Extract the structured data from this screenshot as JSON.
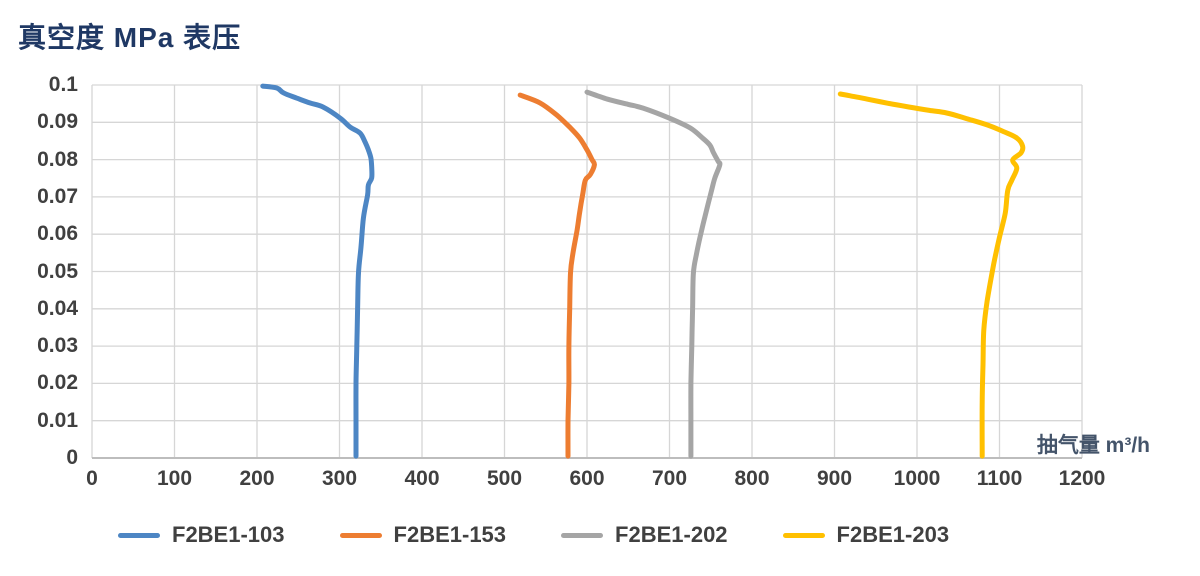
{
  "title": "真空度 MPa 表压",
  "axis_unit_label": "抽气量 m³/h",
  "colors": {
    "title": "#1F3864",
    "tick_text": "#404040",
    "legend_text": "#404040",
    "unit_label_text": "#44546A",
    "gridline": "#D6D6D6",
    "axis_line": "#BDBDBD"
  },
  "chart_data": {
    "type": "line",
    "title": "真空度 MPa 表压",
    "xlabel": "抽气量 m³/h",
    "ylabel": "真空度 MPa 表压",
    "xlim": [
      0,
      1200
    ],
    "ylim": [
      0,
      0.1
    ],
    "grid": true,
    "legend_position": "bottom",
    "x_ticks": [
      {
        "value": 0,
        "label": "0"
      },
      {
        "value": 100,
        "label": "100"
      },
      {
        "value": 200,
        "label": "200"
      },
      {
        "value": 300,
        "label": "300"
      },
      {
        "value": 400,
        "label": "400"
      },
      {
        "value": 500,
        "label": "500"
      },
      {
        "value": 600,
        "label": "600"
      },
      {
        "value": 700,
        "label": "700"
      },
      {
        "value": 800,
        "label": "800"
      },
      {
        "value": 900,
        "label": "900"
      },
      {
        "value": 1000,
        "label": "1000"
      },
      {
        "value": 1100,
        "label": "1100"
      },
      {
        "value": 1200,
        "label": "1200"
      }
    ],
    "y_ticks": [
      {
        "value": 0,
        "label": "0"
      },
      {
        "value": 0.01,
        "label": "0.01"
      },
      {
        "value": 0.02,
        "label": "0.02"
      },
      {
        "value": 0.03,
        "label": "0.03"
      },
      {
        "value": 0.04,
        "label": "0.04"
      },
      {
        "value": 0.05,
        "label": "0.05"
      },
      {
        "value": 0.06,
        "label": "0.06"
      },
      {
        "value": 0.07,
        "label": "0.07"
      },
      {
        "value": 0.08,
        "label": "0.08"
      },
      {
        "value": 0.09,
        "label": "0.09"
      },
      {
        "value": 0.1,
        "label": "0.1"
      }
    ],
    "series": [
      {
        "name": "F2BE1-103",
        "color": "#4D86C4",
        "points": [
          [
            207,
            0.0997
          ],
          [
            224,
            0.0992
          ],
          [
            232,
            0.0979
          ],
          [
            248,
            0.0965
          ],
          [
            264,
            0.0952
          ],
          [
            280,
            0.0941
          ],
          [
            301,
            0.0911
          ],
          [
            313,
            0.0887
          ],
          [
            325,
            0.0871
          ],
          [
            331,
            0.0847
          ],
          [
            335,
            0.0826
          ],
          [
            338,
            0.0804
          ],
          [
            339,
            0.078
          ],
          [
            339,
            0.0751
          ],
          [
            335,
            0.0732
          ],
          [
            334,
            0.0705
          ],
          [
            329,
            0.0643
          ],
          [
            326,
            0.0563
          ],
          [
            323,
            0.0496
          ],
          [
            322,
            0.04
          ],
          [
            321,
            0.03
          ],
          [
            320,
            0.02
          ],
          [
            320,
            0.01
          ],
          [
            320,
            0.0005
          ]
        ]
      },
      {
        "name": "F2BE1-153",
        "color": "#ED7D31",
        "points": [
          [
            519,
            0.0973
          ],
          [
            543,
            0.0952
          ],
          [
            563,
            0.092
          ],
          [
            579,
            0.0887
          ],
          [
            591,
            0.0858
          ],
          [
            600,
            0.0826
          ],
          [
            606,
            0.08
          ],
          [
            609,
            0.0786
          ],
          [
            604,
            0.076
          ],
          [
            598,
            0.0745
          ],
          [
            595,
            0.071
          ],
          [
            591,
            0.0657
          ],
          [
            588,
            0.0611
          ],
          [
            583,
            0.055
          ],
          [
            580,
            0.0496
          ],
          [
            579,
            0.04
          ],
          [
            578,
            0.03
          ],
          [
            578,
            0.02
          ],
          [
            577,
            0.01
          ],
          [
            577,
            0.0005
          ]
        ]
      },
      {
        "name": "F2BE1-202",
        "color": "#A5A5A5",
        "points": [
          [
            600,
            0.0981
          ],
          [
            625,
            0.0962
          ],
          [
            650,
            0.0948
          ],
          [
            668,
            0.0938
          ],
          [
            700,
            0.0911
          ],
          [
            725,
            0.0885
          ],
          [
            740,
            0.0858
          ],
          [
            749,
            0.0839
          ],
          [
            753,
            0.082
          ],
          [
            759,
            0.0795
          ],
          [
            761,
            0.0786
          ],
          [
            755,
            0.0751
          ],
          [
            751,
            0.0718
          ],
          [
            745,
            0.0665
          ],
          [
            739,
            0.0611
          ],
          [
            733,
            0.055
          ],
          [
            729,
            0.0496
          ],
          [
            728,
            0.04
          ],
          [
            727,
            0.03
          ],
          [
            726,
            0.02
          ],
          [
            726,
            0.01
          ],
          [
            726,
            0.0005
          ]
        ]
      },
      {
        "name": "F2BE1-203",
        "color": "#FFC000",
        "points": [
          [
            907,
            0.0976
          ],
          [
            919,
            0.0971
          ],
          [
            940,
            0.0962
          ],
          [
            965,
            0.0951
          ],
          [
            990,
            0.0941
          ],
          [
            1015,
            0.0932
          ],
          [
            1036,
            0.0925
          ],
          [
            1060,
            0.091
          ],
          [
            1085,
            0.0893
          ],
          [
            1105,
            0.0875
          ],
          [
            1121,
            0.0858
          ],
          [
            1128,
            0.0836
          ],
          [
            1126,
            0.0818
          ],
          [
            1116,
            0.0799
          ],
          [
            1121,
            0.0777
          ],
          [
            1115,
            0.0745
          ],
          [
            1110,
            0.0718
          ],
          [
            1107,
            0.0657
          ],
          [
            1100,
            0.0592
          ],
          [
            1093,
            0.052
          ],
          [
            1085,
            0.042
          ],
          [
            1081,
            0.0343
          ],
          [
            1080,
            0.025
          ],
          [
            1079,
            0.015
          ],
          [
            1079,
            0.0005
          ]
        ]
      }
    ]
  }
}
